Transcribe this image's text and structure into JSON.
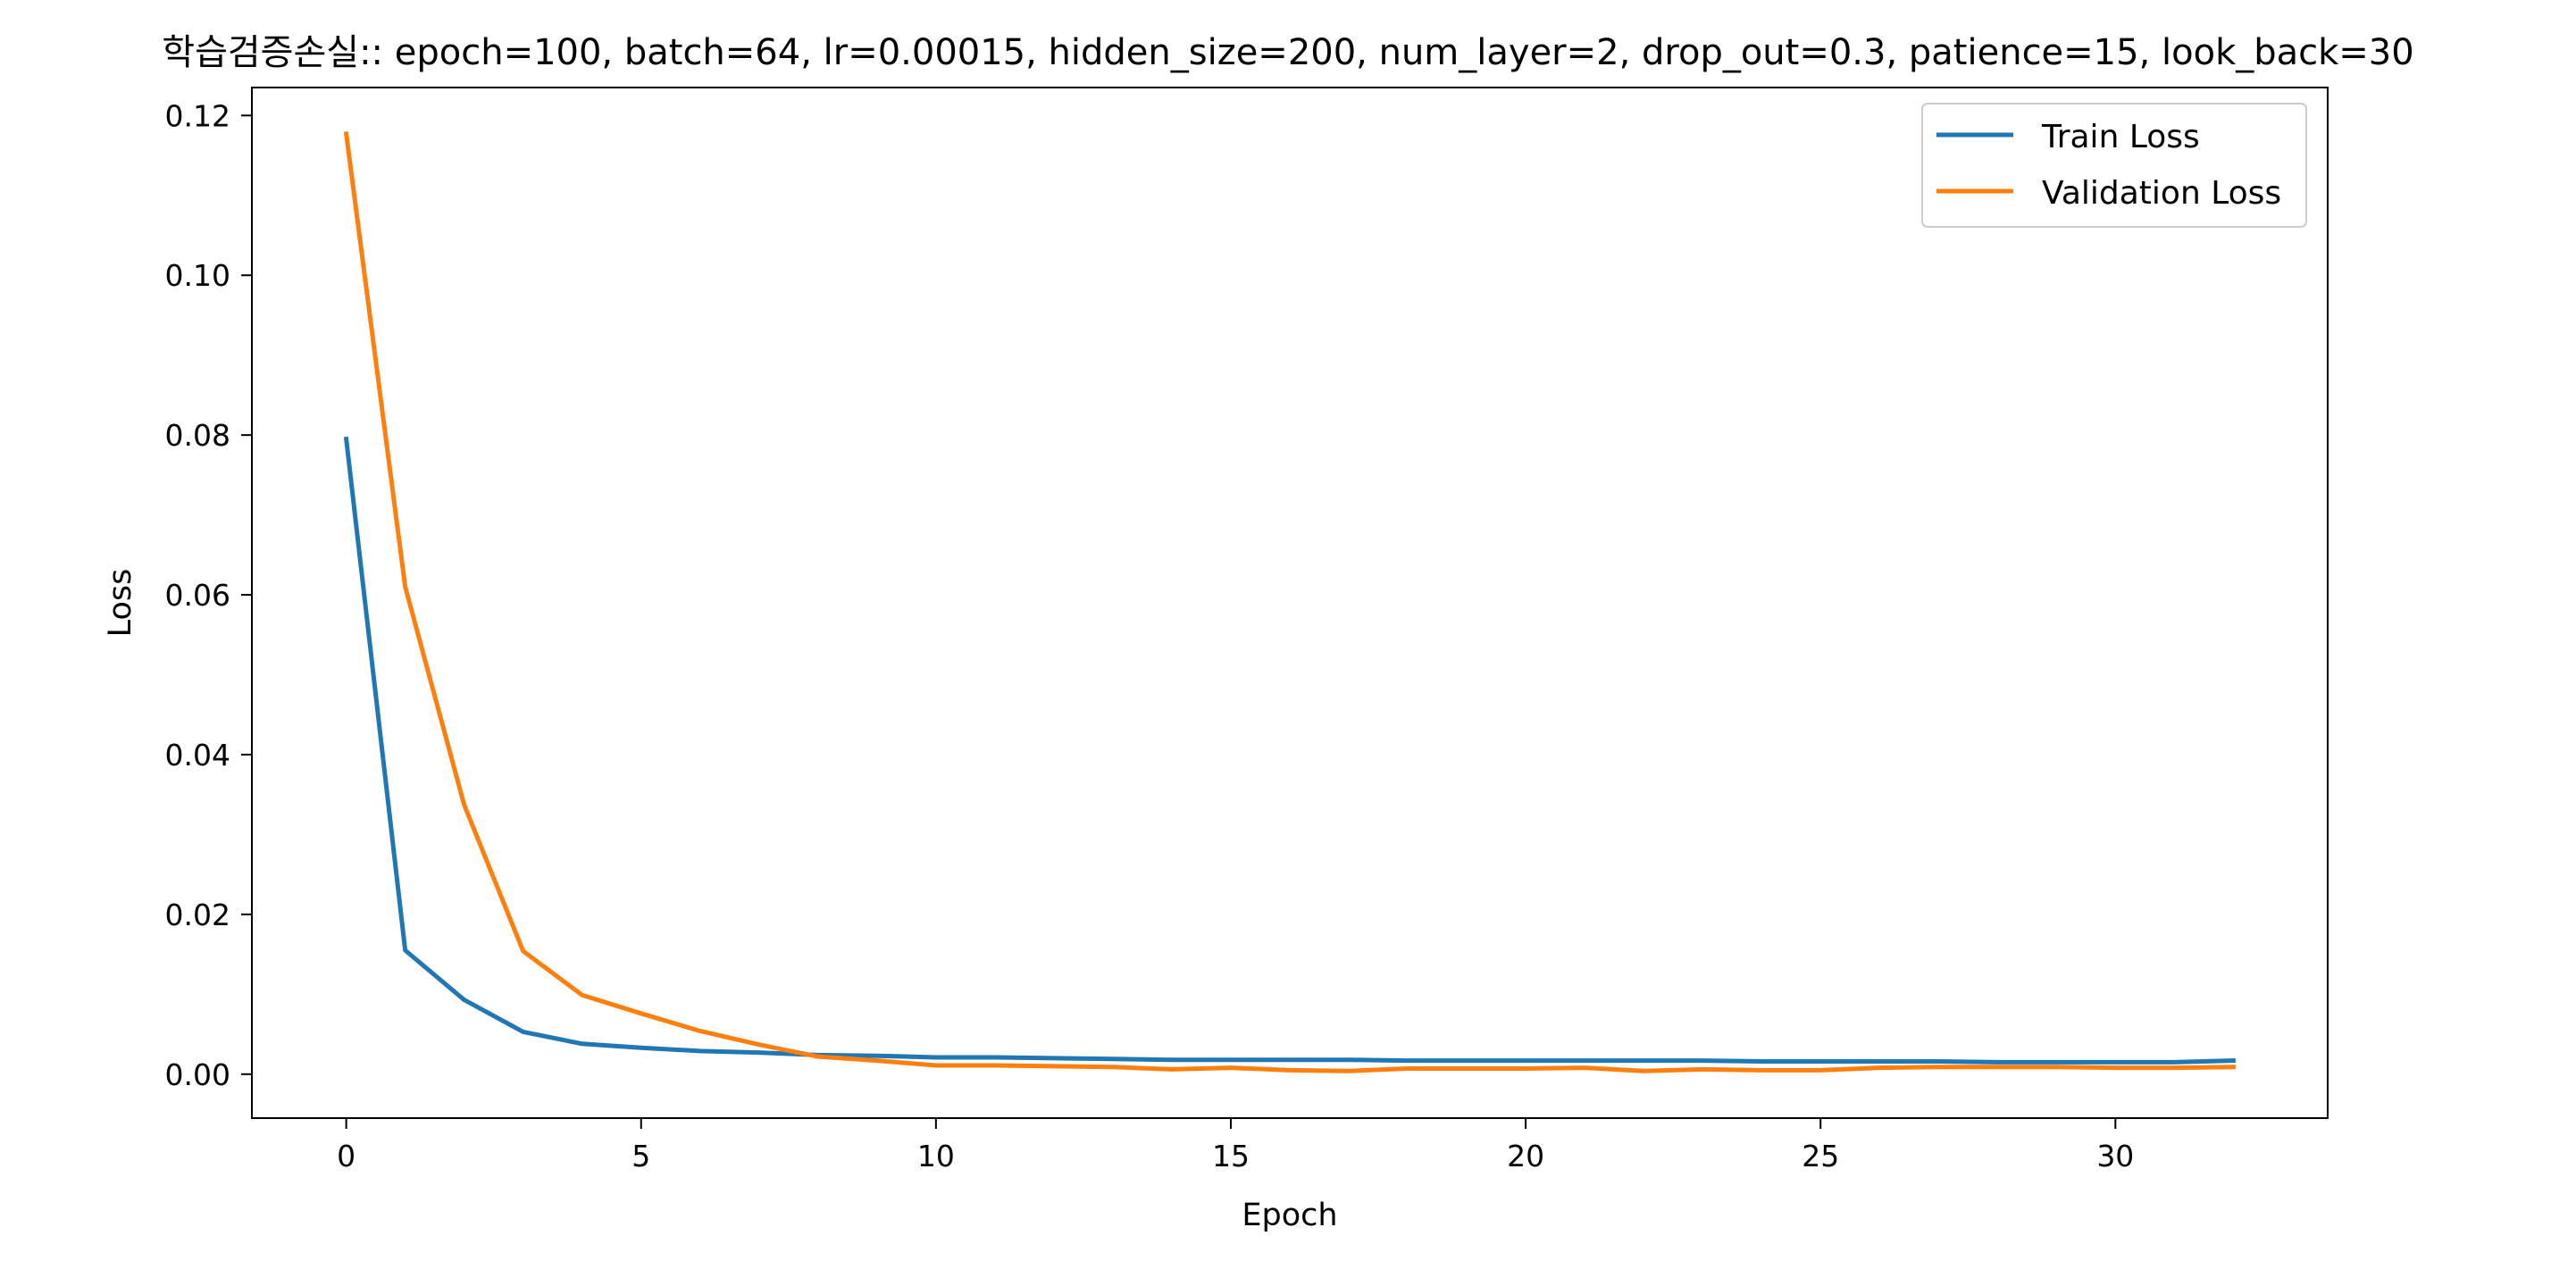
{
  "chart_data": {
    "type": "line",
    "title": "학습검증손실:: epoch=100, batch=64, lr=0.00015, hidden_size=200, num_layer=2, drop_out=0.3, patience=15, look_back=30",
    "xlabel": "Epoch",
    "ylabel": "Loss",
    "xlim": [
      -1.6,
      33.6
    ],
    "ylim": [
      -0.0055,
      0.1235
    ],
    "xticks": [
      0,
      5,
      10,
      15,
      20,
      25,
      30
    ],
    "xtick_labels": [
      "0",
      "5",
      "10",
      "15",
      "20",
      "25",
      "30"
    ],
    "yticks": [
      0.0,
      0.02,
      0.04,
      0.06,
      0.08,
      0.1,
      0.12
    ],
    "ytick_labels": [
      "0.00",
      "0.02",
      "0.04",
      "0.06",
      "0.08",
      "0.10",
      "0.12"
    ],
    "grid": false,
    "legend_position": "upper right",
    "x": [
      0,
      1,
      2,
      3,
      4,
      5,
      6,
      7,
      8,
      9,
      10,
      11,
      12,
      13,
      14,
      15,
      16,
      17,
      18,
      19,
      20,
      21,
      22,
      23,
      24,
      25,
      26,
      27,
      28,
      29,
      30,
      31,
      32
    ],
    "series": [
      {
        "name": "Train Loss",
        "color": "#1f77b4",
        "values": [
          0.0795,
          0.0155,
          0.0093,
          0.0053,
          0.0038,
          0.0033,
          0.0029,
          0.0027,
          0.0024,
          0.0023,
          0.0021,
          0.0021,
          0.002,
          0.0019,
          0.0018,
          0.0018,
          0.0018,
          0.0018,
          0.0017,
          0.0017,
          0.0017,
          0.0017,
          0.0017,
          0.0017,
          0.0016,
          0.0016,
          0.0016,
          0.0016,
          0.0015,
          0.0015,
          0.0015,
          0.0015,
          0.0017
        ]
      },
      {
        "name": "Validation Loss",
        "color": "#ff7f0e",
        "values": [
          0.1177,
          0.061,
          0.0337,
          0.0154,
          0.0099,
          0.0076,
          0.0054,
          0.0037,
          0.0022,
          0.0017,
          0.0011,
          0.0011,
          0.001,
          0.0009,
          0.0006,
          0.0008,
          0.0005,
          0.0004,
          0.0007,
          0.0007,
          0.0007,
          0.0008,
          0.0004,
          0.0006,
          0.0005,
          0.0005,
          0.0008,
          0.0009,
          0.0009,
          0.0009,
          0.0008,
          0.0008,
          0.0009
        ]
      }
    ]
  }
}
